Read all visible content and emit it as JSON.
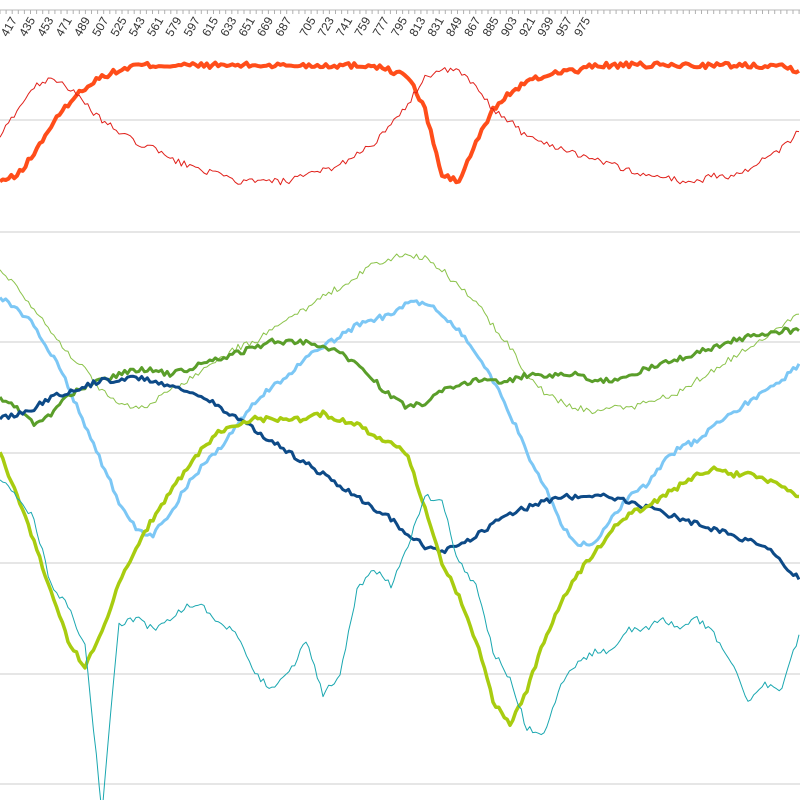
{
  "chart_data": {
    "type": "line",
    "x_tick_labels": [
      "417",
      "435",
      "453",
      "471",
      "489",
      "507",
      "525",
      "543",
      "561",
      "579",
      "597",
      "615",
      "633",
      "651",
      "669",
      "687",
      "705",
      "723",
      "741",
      "759",
      "777",
      "795",
      "813",
      "831",
      "849",
      "867",
      "885",
      "903",
      "921",
      "939",
      "957",
      "975"
    ],
    "grid": true,
    "legend": "none",
    "series": [
      {
        "color": "#ff4d1a",
        "width": 4,
        "x": [
          0,
          17,
          34,
          51,
          68,
          85,
          102,
          119,
          136,
          153,
          170,
          187,
          204,
          221,
          238,
          255,
          272,
          289,
          306,
          323,
          340,
          357,
          374,
          391,
          408,
          425,
          442,
          459,
          476,
          493,
          510,
          527,
          544,
          561,
          578,
          595,
          612,
          629,
          646,
          663,
          680,
          697,
          714,
          731,
          748,
          765,
          782,
          799
        ],
        "values": [
          10.9,
          11.0,
          11.4,
          11.9,
          12.3,
          12.6,
          12.8,
          12.9,
          13.0,
          13.0,
          13.0,
          13.0,
          13.0,
          13.0,
          13.0,
          13.0,
          13.0,
          13.0,
          13.0,
          13.0,
          13.0,
          13.0,
          13.0,
          12.9,
          12.8,
          12.2,
          11.0,
          10.9,
          11.6,
          12.2,
          12.5,
          12.7,
          12.8,
          12.9,
          12.9,
          13.0,
          13.0,
          13.0,
          13.0,
          13.0,
          13.0,
          13.0,
          13.0,
          13.0,
          13.0,
          13.0,
          13.0,
          12.9
        ]
      },
      {
        "color": "#e0201a",
        "width": 1,
        "x": [
          0,
          17,
          34,
          51,
          68,
          85,
          102,
          119,
          136,
          153,
          170,
          187,
          204,
          221,
          238,
          255,
          272,
          289,
          306,
          323,
          340,
          357,
          374,
          391,
          408,
          425,
          442,
          459,
          476,
          493,
          510,
          527,
          544,
          561,
          578,
          595,
          612,
          629,
          646,
          663,
          680,
          697,
          714,
          731,
          748,
          765,
          782,
          799
        ],
        "values": [
          11.7,
          12.2,
          12.6,
          12.8,
          12.6,
          12.3,
          12.0,
          11.8,
          11.6,
          11.5,
          11.3,
          11.2,
          11.1,
          11.0,
          10.9,
          10.9,
          10.9,
          10.9,
          11.0,
          11.1,
          11.2,
          11.4,
          11.6,
          11.9,
          12.3,
          12.8,
          12.9,
          12.9,
          12.6,
          12.2,
          12.0,
          11.7,
          11.6,
          11.5,
          11.4,
          11.3,
          11.2,
          11.1,
          11.0,
          11.0,
          10.9,
          10.9,
          11.0,
          11.0,
          11.1,
          11.3,
          11.5,
          11.8
        ]
      },
      {
        "color": "#8bc34a",
        "width": 1,
        "x": [
          0,
          17,
          34,
          51,
          68,
          85,
          102,
          119,
          136,
          153,
          170,
          187,
          204,
          221,
          238,
          255,
          272,
          289,
          306,
          323,
          340,
          357,
          374,
          391,
          408,
          425,
          442,
          459,
          476,
          493,
          510,
          527,
          544,
          561,
          578,
          595,
          612,
          629,
          646,
          663,
          680,
          697,
          714,
          731,
          748,
          765,
          782,
          799
        ],
        "values": [
          9.3,
          9.0,
          8.6,
          8.2,
          7.8,
          7.5,
          7.1,
          6.9,
          6.8,
          6.9,
          7.1,
          7.3,
          7.5,
          7.7,
          7.9,
          8.0,
          8.2,
          8.4,
          8.6,
          8.8,
          9.0,
          9.2,
          9.4,
          9.5,
          9.6,
          9.5,
          9.3,
          9.0,
          8.7,
          8.3,
          7.9,
          7.4,
          7.1,
          6.9,
          6.8,
          6.7,
          6.8,
          6.8,
          6.9,
          7.0,
          7.1,
          7.3,
          7.5,
          7.7,
          7.9,
          8.1,
          8.3,
          8.5
        ]
      },
      {
        "color": "#7cc7f5",
        "width": 3,
        "x": [
          0,
          17,
          34,
          51,
          68,
          85,
          102,
          119,
          136,
          153,
          170,
          187,
          204,
          221,
          238,
          255,
          272,
          289,
          306,
          323,
          340,
          357,
          374,
          391,
          408,
          425,
          442,
          459,
          476,
          493,
          510,
          527,
          544,
          561,
          578,
          595,
          612,
          629,
          646,
          663,
          680,
          697,
          714,
          731,
          748,
          765,
          782,
          799
        ],
        "values": [
          8.8,
          8.6,
          8.3,
          7.8,
          7.2,
          6.5,
          5.8,
          5.1,
          4.6,
          4.5,
          4.9,
          5.4,
          5.8,
          6.1,
          6.5,
          6.9,
          7.2,
          7.4,
          7.7,
          7.9,
          8.1,
          8.3,
          8.4,
          8.5,
          8.7,
          8.7,
          8.5,
          8.2,
          7.8,
          7.3,
          6.7,
          6.0,
          5.4,
          4.7,
          4.3,
          4.4,
          4.8,
          5.2,
          5.4,
          5.8,
          6.1,
          6.2,
          6.5,
          6.7,
          6.9,
          7.1,
          7.3,
          7.6
        ]
      },
      {
        "color": "#5a9e2a",
        "width": 3,
        "x": [
          0,
          17,
          34,
          51,
          68,
          85,
          102,
          119,
          136,
          153,
          170,
          187,
          204,
          221,
          238,
          255,
          272,
          289,
          306,
          323,
          340,
          357,
          374,
          391,
          408,
          425,
          442,
          459,
          476,
          493,
          510,
          527,
          544,
          561,
          578,
          595,
          612,
          629,
          646,
          663,
          680,
          697,
          714,
          731,
          748,
          765,
          782,
          799
        ],
        "values": [
          7.0,
          6.8,
          6.5,
          6.7,
          7.0,
          7.2,
          7.3,
          7.4,
          7.5,
          7.5,
          7.4,
          7.5,
          7.6,
          7.7,
          7.8,
          7.9,
          8.0,
          8.0,
          8.0,
          7.9,
          7.8,
          7.6,
          7.3,
          7.0,
          6.8,
          6.9,
          7.1,
          7.2,
          7.3,
          7.3,
          7.3,
          7.4,
          7.4,
          7.4,
          7.4,
          7.3,
          7.3,
          7.4,
          7.5,
          7.6,
          7.7,
          7.8,
          7.9,
          8.0,
          8.1,
          8.1,
          8.2,
          8.2
        ]
      },
      {
        "color": "#0d4a87",
        "width": 3,
        "x": [
          0,
          17,
          34,
          51,
          68,
          85,
          102,
          119,
          136,
          153,
          170,
          187,
          204,
          221,
          238,
          255,
          272,
          289,
          306,
          323,
          340,
          357,
          374,
          391,
          408,
          425,
          442,
          459,
          476,
          493,
          510,
          527,
          544,
          561,
          578,
          595,
          612,
          629,
          646,
          663,
          680,
          697,
          714,
          731,
          748,
          765,
          782,
          799
        ],
        "values": [
          6.6,
          6.7,
          6.8,
          7.0,
          7.1,
          7.2,
          7.3,
          7.3,
          7.35,
          7.3,
          7.2,
          7.1,
          7.0,
          6.8,
          6.6,
          6.4,
          6.2,
          6.0,
          5.8,
          5.6,
          5.4,
          5.2,
          5.0,
          4.8,
          4.5,
          4.3,
          4.2,
          4.3,
          4.5,
          4.7,
          4.9,
          5.0,
          5.1,
          5.2,
          5.2,
          5.2,
          5.2,
          5.1,
          5.0,
          4.9,
          4.8,
          4.7,
          4.6,
          4.5,
          4.4,
          4.3,
          4.0,
          3.7
        ]
      },
      {
        "color": "#a8cc10",
        "width": 3.5,
        "x": [
          0,
          17,
          34,
          51,
          68,
          85,
          102,
          119,
          136,
          153,
          170,
          187,
          204,
          221,
          238,
          255,
          272,
          289,
          306,
          323,
          340,
          357,
          374,
          391,
          408,
          425,
          442,
          459,
          476,
          493,
          510,
          527,
          544,
          561,
          578,
          595,
          612,
          629,
          646,
          663,
          680,
          697,
          714,
          731,
          748,
          765,
          782,
          799
        ],
        "values": [
          6.0,
          5.2,
          4.4,
          3.5,
          2.6,
          2.1,
          2.8,
          3.6,
          4.3,
          4.8,
          5.3,
          5.7,
          6.1,
          6.4,
          6.5,
          6.6,
          6.6,
          6.6,
          6.6,
          6.7,
          6.6,
          6.5,
          6.3,
          6.2,
          5.9,
          5.0,
          4.0,
          3.4,
          2.6,
          1.5,
          1.1,
          1.7,
          2.6,
          3.3,
          3.8,
          4.2,
          4.6,
          4.9,
          5.0,
          5.2,
          5.4,
          5.6,
          5.7,
          5.6,
          5.6,
          5.5,
          5.4,
          5.2
        ]
      },
      {
        "color": "#1aa7b0",
        "width": 1,
        "x": [
          0,
          17,
          34,
          51,
          68,
          85,
          102,
          119,
          136,
          153,
          170,
          187,
          204,
          221,
          238,
          255,
          272,
          289,
          306,
          323,
          340,
          357,
          374,
          391,
          408,
          425,
          442,
          459,
          476,
          493,
          510,
          527,
          544,
          561,
          578,
          595,
          612,
          629,
          646,
          663,
          680,
          697,
          714,
          731,
          748,
          765,
          782,
          799
        ],
        "values": [
          5.5,
          5.2,
          4.8,
          3.6,
          3.2,
          2.5,
          -0.5,
          2.9,
          3.0,
          2.8,
          3.0,
          3.2,
          3.2,
          2.9,
          2.7,
          2.0,
          1.7,
          2.0,
          2.6,
          1.6,
          2.0,
          3.5,
          3.9,
          3.6,
          4.3,
          5.2,
          5.1,
          4.0,
          3.6,
          2.4,
          1.9,
          1.0,
          0.9,
          1.8,
          2.2,
          2.4,
          2.4,
          2.8,
          2.8,
          3.0,
          2.8,
          3.0,
          2.7,
          2.2,
          1.5,
          1.8,
          1.7,
          2.7
        ]
      }
    ]
  }
}
